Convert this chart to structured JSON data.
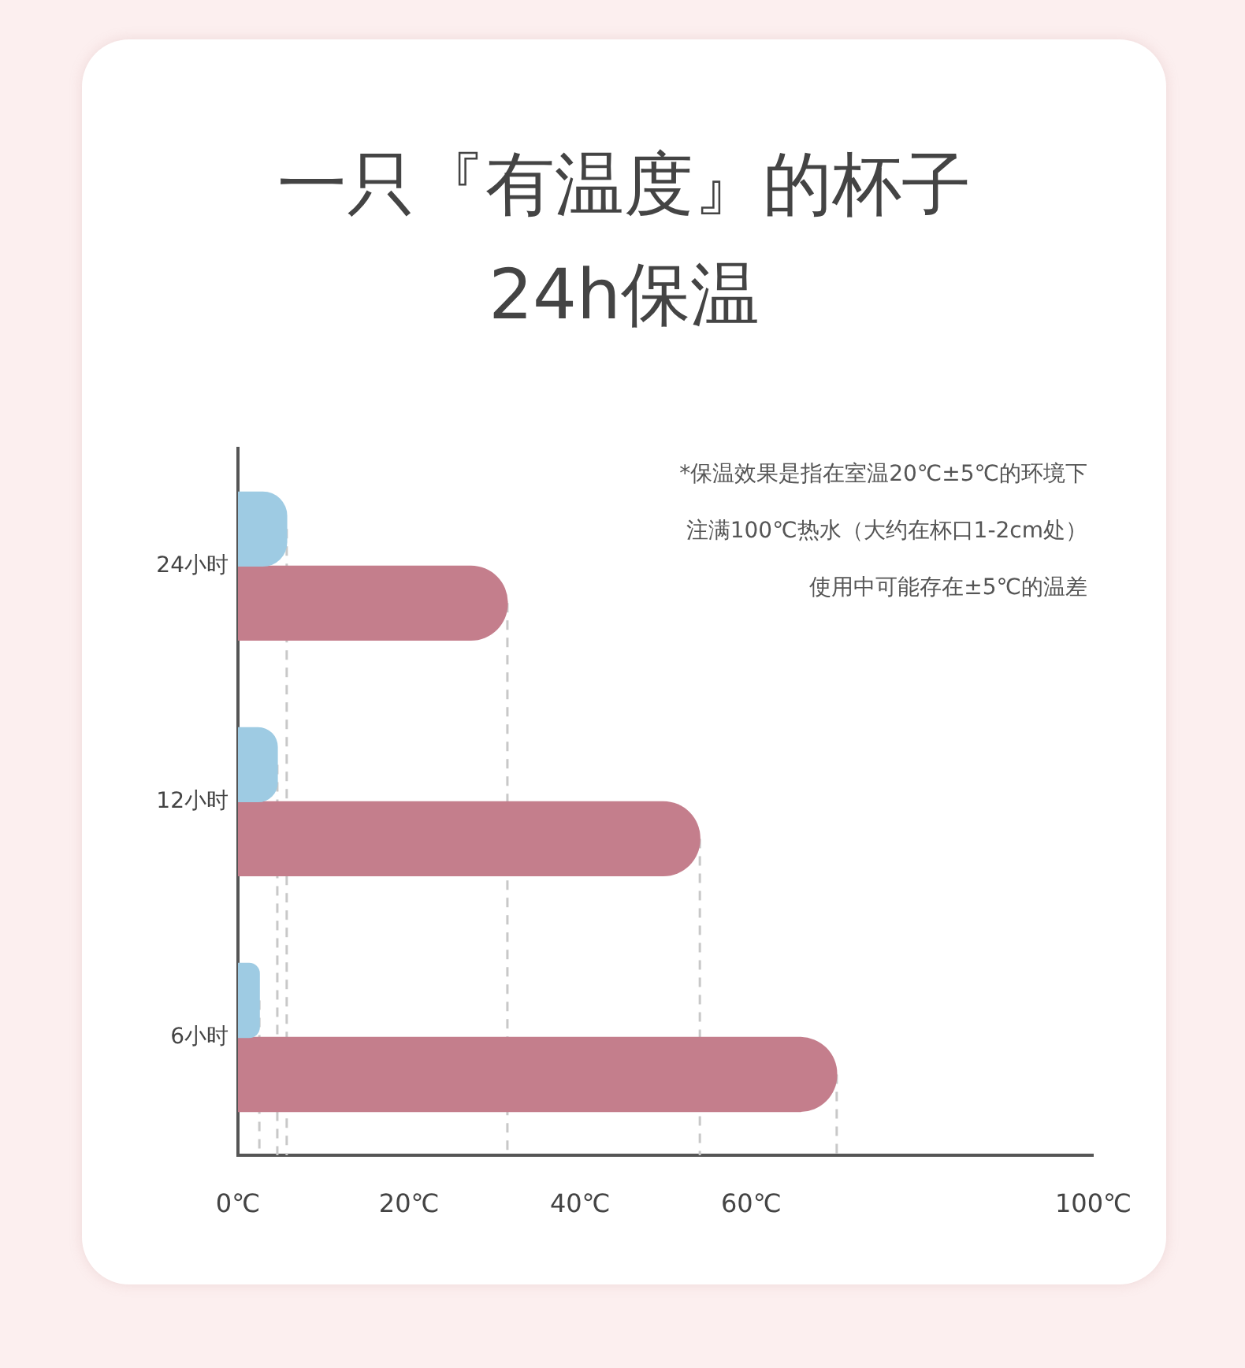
{
  "chart_data": {
    "type": "bar",
    "orientation": "horizontal",
    "title": "一只『有温度』的杯子",
    "subtitle": "24h保温",
    "categories": [
      "24小时",
      "12小时",
      "6小时"
    ],
    "series": [
      {
        "color": "#9ecbe3",
        "values": [
          5.7,
          4.6,
          2.5
        ]
      },
      {
        "color": "#c47e8c",
        "values": [
          31.5,
          54,
          70
        ]
      }
    ],
    "xlim": [
      0,
      100
    ],
    "xticks": [
      {
        "value": 0,
        "label": "0℃"
      },
      {
        "value": 20,
        "label": "20℃"
      },
      {
        "value": 40,
        "label": "40℃"
      },
      {
        "value": 60,
        "label": "60℃"
      },
      {
        "value": 100,
        "label": "100℃"
      }
    ],
    "ref_lines": [
      {
        "axis": "x",
        "value": 5.7,
        "color": "#c8c8c8",
        "line_style": "dashed"
      },
      {
        "axis": "x",
        "value": 4.6,
        "color": "#c8c8c8",
        "line_style": "dashed"
      },
      {
        "axis": "x",
        "value": 2.5,
        "color": "#c8c8c8",
        "line_style": "dashed"
      },
      {
        "axis": "x",
        "value": 31.5,
        "color": "#c8c8c8",
        "line_style": "dashed"
      },
      {
        "axis": "x",
        "value": 54,
        "color": "#c8c8c8",
        "line_style": "dashed"
      },
      {
        "axis": "x",
        "value": 70,
        "color": "#c8c8c8",
        "line_style": "dashed"
      }
    ],
    "grid": false,
    "legend": false,
    "annotations": [
      "*保温效果是指在室温20℃±5℃的环境下",
      "注满100℃热水（大约在杯口1-2cm处）",
      "使用中可能存在±5℃的温差"
    ]
  }
}
